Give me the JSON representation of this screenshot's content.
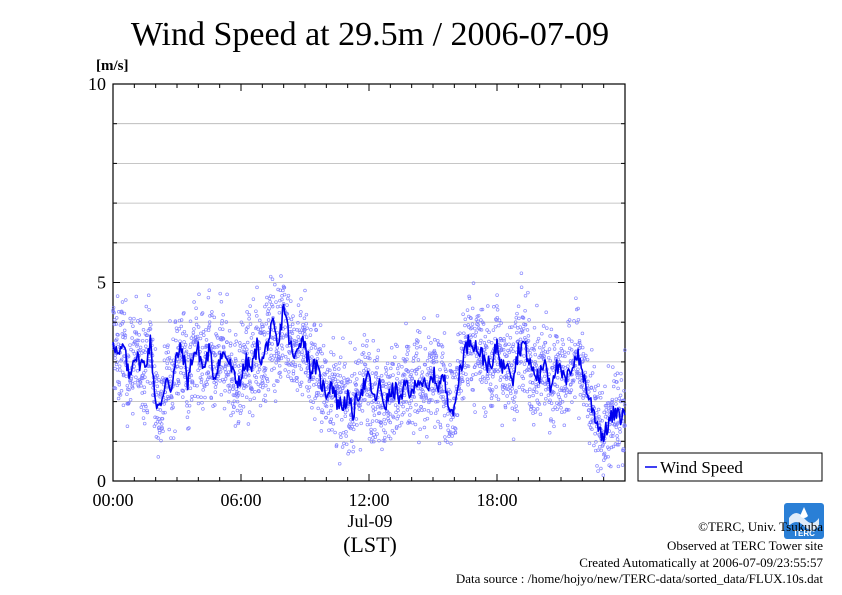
{
  "chart_data": {
    "type": "line",
    "title": "Wind Speed at 29.5m / 2006-07-09",
    "unit_label": "[m/s]",
    "xlabel_date": "Jul-09",
    "xlabel_tz": "(LST)",
    "ylim": [
      0,
      10
    ],
    "xlim_hours": [
      0,
      24
    ],
    "yticks": [
      {
        "value": 0,
        "label": "0"
      },
      {
        "value": 5,
        "label": "5"
      },
      {
        "value": 10,
        "label": "10"
      }
    ],
    "xticks": [
      {
        "hour": 0,
        "label": "00:00"
      },
      {
        "hour": 6,
        "label": "06:00"
      },
      {
        "hour": 12,
        "label": "12:00"
      },
      {
        "hour": 18,
        "label": "18:00"
      }
    ],
    "grid": true,
    "legend_position": "right",
    "series": [
      {
        "name": "Wind Speed",
        "color": "#0000ee",
        "scatter_color": "#7777ff",
        "x_hours": [
          0.0,
          0.25,
          0.5,
          0.75,
          1.0,
          1.25,
          1.5,
          1.75,
          2.0,
          2.25,
          2.5,
          2.75,
          3.0,
          3.25,
          3.5,
          3.75,
          4.0,
          4.25,
          4.5,
          4.75,
          5.0,
          5.25,
          5.5,
          5.75,
          6.0,
          6.25,
          6.5,
          6.75,
          7.0,
          7.25,
          7.5,
          7.75,
          8.0,
          8.25,
          8.5,
          8.75,
          9.0,
          9.25,
          9.5,
          9.75,
          10.0,
          10.25,
          10.5,
          10.75,
          11.0,
          11.25,
          11.5,
          11.75,
          12.0,
          12.25,
          12.5,
          12.75,
          13.0,
          13.25,
          13.5,
          13.75,
          14.0,
          14.25,
          14.5,
          14.75,
          15.0,
          15.25,
          15.5,
          15.75,
          16.0,
          16.25,
          16.5,
          16.75,
          17.0,
          17.25,
          17.5,
          17.75,
          18.0,
          18.25,
          18.5,
          18.75,
          19.0,
          19.25,
          19.5,
          19.75,
          20.0,
          20.25,
          20.5,
          20.75,
          21.0,
          21.25,
          21.5,
          21.75,
          22.0,
          22.25,
          22.5,
          22.75,
          23.0,
          23.25,
          23.5,
          23.75,
          24.0
        ],
        "values": [
          3.6,
          3.1,
          3.4,
          2.6,
          3.2,
          3.0,
          2.9,
          3.5,
          2.0,
          1.8,
          2.7,
          2.3,
          3.2,
          3.3,
          2.5,
          3.2,
          3.3,
          2.8,
          3.3,
          2.6,
          3.1,
          3.2,
          2.9,
          2.5,
          2.6,
          3.0,
          2.8,
          3.4,
          3.0,
          3.5,
          3.9,
          3.3,
          4.5,
          3.6,
          3.0,
          3.6,
          3.5,
          2.8,
          2.9,
          2.5,
          2.2,
          2.5,
          2.0,
          1.9,
          2.1,
          1.7,
          2.2,
          2.4,
          2.6,
          2.0,
          2.4,
          1.9,
          2.2,
          2.3,
          2.0,
          2.5,
          2.1,
          2.6,
          2.5,
          2.2,
          2.7,
          2.4,
          2.6,
          2.0,
          1.7,
          2.8,
          3.3,
          3.6,
          3.4,
          3.2,
          3.0,
          2.8,
          3.5,
          2.8,
          3.1,
          2.6,
          3.3,
          3.5,
          3.0,
          2.7,
          2.6,
          3.1,
          2.4,
          2.9,
          2.7,
          2.5,
          2.9,
          3.2,
          2.8,
          2.2,
          1.8,
          1.4,
          1.1,
          1.5,
          1.7,
          1.6,
          1.7
        ]
      }
    ]
  },
  "credits": {
    "copyright": "©TERC, Univ. Tsukuba",
    "observed": "Observed at TERC Tower site",
    "created": "Created Automatically at 2006-07-09/23:55:57",
    "source": "Data source : /home/hojyo/new/TERC-data/sorted_data/FLUX.10s.dat"
  },
  "logo": {
    "text": "TERC",
    "colors": {
      "blue": "#2a7fd6",
      "white": "#ffffff"
    }
  }
}
